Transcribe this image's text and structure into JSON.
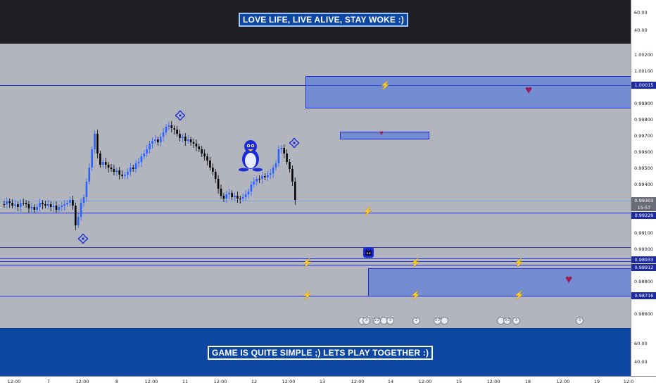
{
  "banners": {
    "top": "LOVE LIFE, LIVE ALIVE, STAY WOKE :)",
    "bottom": "GAME IS QUITE SIMPLE ;) LETS PLAY TOGETHER :)"
  },
  "colors": {
    "accent_line": "#1a2bd8",
    "zone_fill": "#4169e1",
    "bull": "#2962ff",
    "bear": "#000000",
    "banner_bg": "#0d47a1"
  },
  "price_axis": {
    "top_pane_ticks": [
      "60.00",
      "40.00"
    ],
    "ticks": [
      "1.00200",
      "1.00100",
      "0.99900",
      "0.99800",
      "0.99700",
      "0.99600",
      "0.99500",
      "0.99400",
      "0.99100",
      "0.99000",
      "0.98800",
      "0.98600"
    ],
    "bottom_pane_ticks": [
      "60.00",
      "40.00"
    ],
    "labels": {
      "level_high": "1.00015",
      "last_price": "0.99303",
      "countdown": "15:57",
      "level_mid": "0.99229",
      "level_a": "0.98933",
      "level_b": "0.98912",
      "level_low": "0.98716"
    }
  },
  "time_axis": [
    "12:00",
    "7",
    "12:00",
    "8",
    "12:00",
    "11",
    "12:00",
    "12",
    "12:00",
    "13",
    "12:00",
    "14",
    "12:00",
    "15",
    "12:00",
    "18",
    "12:00",
    "19",
    "12:0"
  ],
  "events": [
    "3",
    "2 2",
    "3",
    "2",
    "3 2",
    "3 2",
    "3",
    "3"
  ],
  "icons": [
    "linux-penguin-icon",
    "github-icon",
    "crosshair-icon",
    "bolt-icon",
    "heart-icon"
  ]
}
